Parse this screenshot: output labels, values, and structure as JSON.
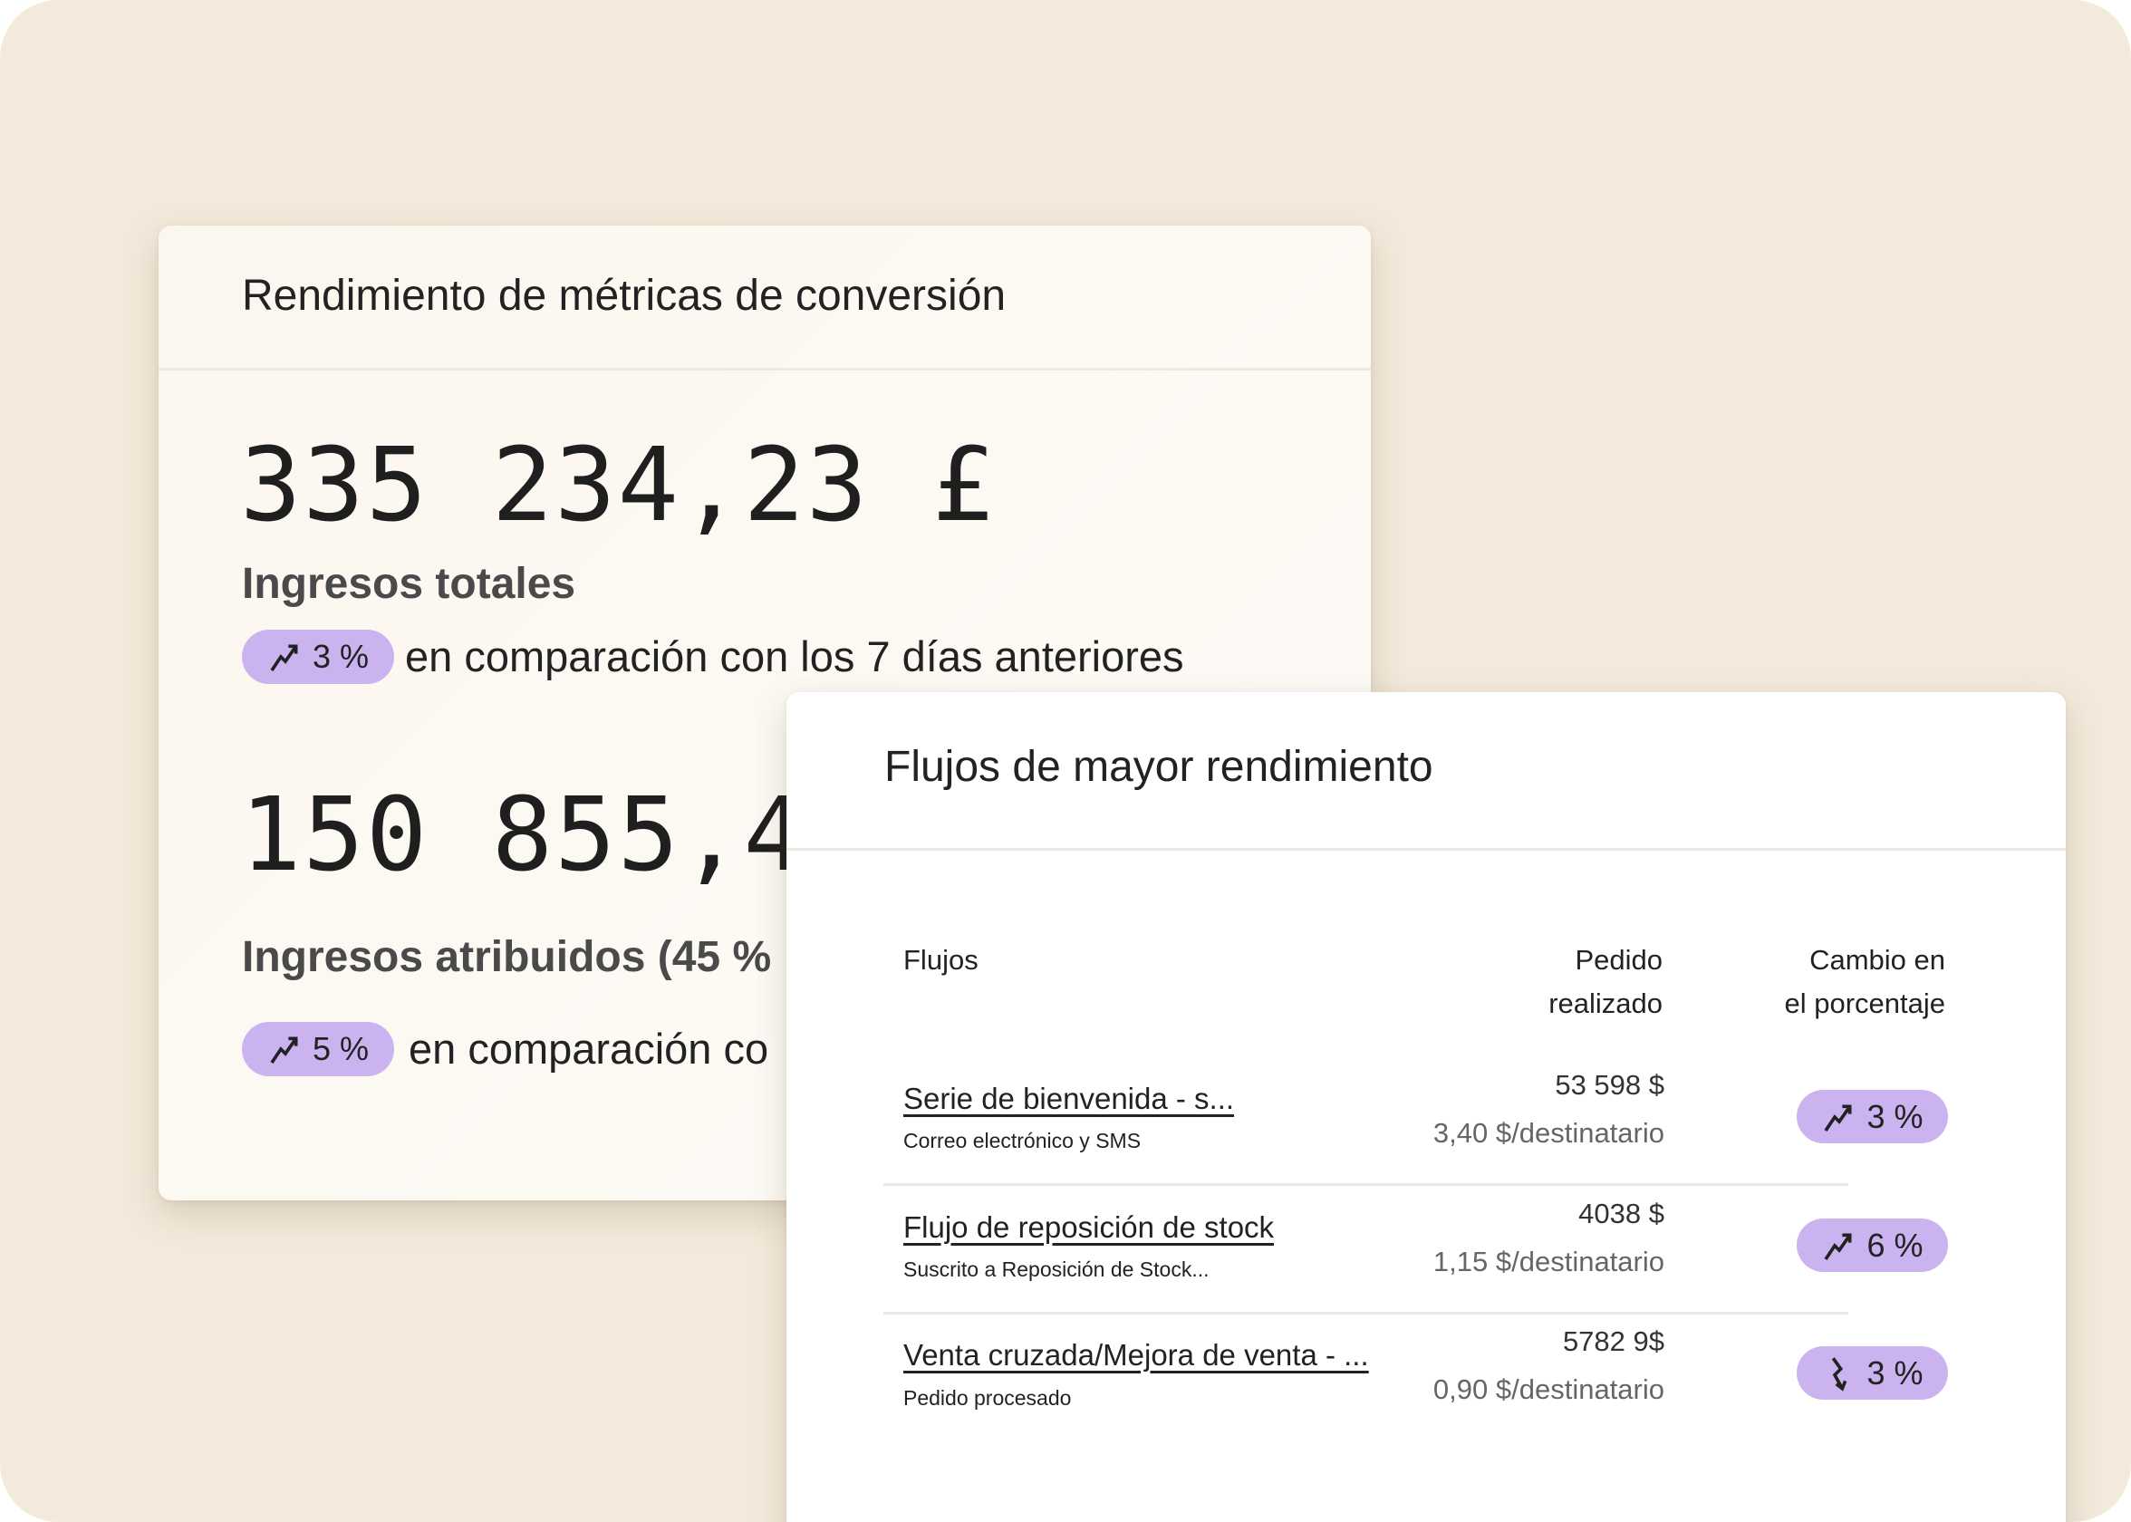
{
  "colors": {
    "background": "#f4eadb",
    "badge": "#cbb3ef"
  },
  "metrics_card": {
    "title": "Rendimiento de métricas de conversión",
    "metrics": [
      {
        "value": "335 234,23 £",
        "label": "Ingresos totales",
        "change": "3 %",
        "trend": "up",
        "comparison": "en comparación con los 7 días anteriores"
      },
      {
        "value": "150 855,4",
        "label": "Ingresos atribuidos (45 %",
        "change": "5 %",
        "trend": "up",
        "comparison": "en comparación co"
      }
    ]
  },
  "flows_card": {
    "title": "Flujos de mayor rendimiento",
    "headers": {
      "flows": "Flujos",
      "orders_1": "Pedido",
      "orders_2": "realizado",
      "change_1": "Cambio en",
      "change_2": "el porcentaje"
    },
    "rows": [
      {
        "name": "Serie de bienvenida - s...",
        "sub": "Correo electrónico y SMS",
        "amount": "53 598 $",
        "per": "3,40 $/destinatario",
        "change": "3 %",
        "trend": "up"
      },
      {
        "name": "Flujo de reposición de stock",
        "sub": "Suscrito a Reposición de Stock...",
        "amount": "4038 $",
        "per": "1,15 $/destinatario",
        "change": "6 %",
        "trend": "up"
      },
      {
        "name": "Venta cruzada/Mejora de venta - ...",
        "sub": "Pedido procesado",
        "amount": "5782 9$",
        "per": "0,90 $/destinatario",
        "change": "3 %",
        "trend": "down"
      }
    ]
  }
}
